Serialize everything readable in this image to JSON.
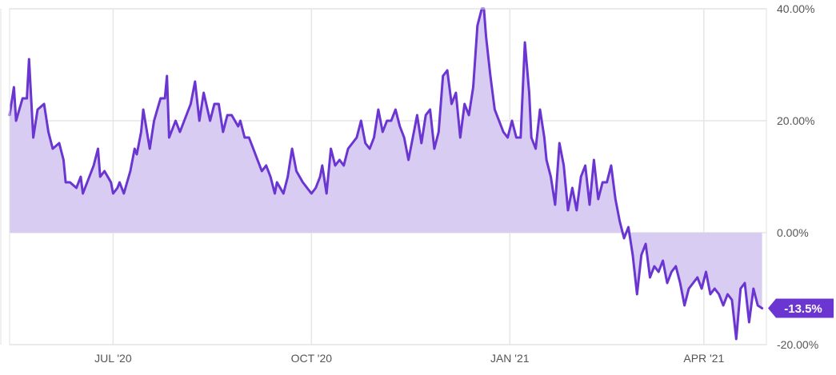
{
  "chart_data": {
    "type": "area",
    "title": "",
    "xlabel": "",
    "ylabel": "",
    "x_ticks": [
      "JUL '20",
      "OCT '20",
      "JAN '21",
      "APR '21"
    ],
    "x_tick_dates": [
      "2020-07-01",
      "2020-10-01",
      "2021-01-01",
      "2021-04-01"
    ],
    "xlim": [
      "2020-05-14",
      "2021-04-30"
    ],
    "y_ticks": [
      40,
      20,
      0,
      -20
    ],
    "y_tick_labels": [
      "40.00%",
      "20.00%",
      "0.00%",
      "-20.00%"
    ],
    "ylim": [
      -20,
      40
    ],
    "grid": true,
    "last_value_label": "-13.5%",
    "colors": {
      "line": "#6a35d0",
      "fill": "#d8ccf2",
      "callout": "#6a35d0",
      "grid": "#e6e6e6"
    },
    "series": [
      {
        "values": [
          [
            "2020-05-14",
            21
          ],
          [
            "2020-05-16",
            26
          ],
          [
            "2020-05-17",
            20
          ],
          [
            "2020-05-20",
            24
          ],
          [
            "2020-05-22",
            24
          ],
          [
            "2020-05-23",
            31
          ],
          [
            "2020-05-25",
            17
          ],
          [
            "2020-05-27",
            22
          ],
          [
            "2020-05-30",
            23
          ],
          [
            "2020-06-01",
            18
          ],
          [
            "2020-06-03",
            15
          ],
          [
            "2020-06-06",
            16
          ],
          [
            "2020-06-08",
            13
          ],
          [
            "2020-06-09",
            9
          ],
          [
            "2020-06-11",
            9
          ],
          [
            "2020-06-14",
            8
          ],
          [
            "2020-06-16",
            10
          ],
          [
            "2020-06-17",
            7
          ],
          [
            "2020-06-20",
            10
          ],
          [
            "2020-06-22",
            12
          ],
          [
            "2020-06-24",
            15
          ],
          [
            "2020-06-25",
            10
          ],
          [
            "2020-06-27",
            11
          ],
          [
            "2020-06-30",
            9
          ],
          [
            "2020-07-01",
            7
          ],
          [
            "2020-07-03",
            8
          ],
          [
            "2020-07-04",
            9
          ],
          [
            "2020-07-06",
            7
          ],
          [
            "2020-07-09",
            11
          ],
          [
            "2020-07-11",
            15
          ],
          [
            "2020-07-12",
            14
          ],
          [
            "2020-07-14",
            18
          ],
          [
            "2020-07-15",
            22
          ],
          [
            "2020-07-18",
            15
          ],
          [
            "2020-07-20",
            20
          ],
          [
            "2020-07-23",
            24
          ],
          [
            "2020-07-25",
            24
          ],
          [
            "2020-07-26",
            28
          ],
          [
            "2020-07-27",
            17
          ],
          [
            "2020-07-30",
            20
          ],
          [
            "2020-08-01",
            18
          ],
          [
            "2020-08-03",
            20
          ],
          [
            "2020-08-06",
            23
          ],
          [
            "2020-08-08",
            27
          ],
          [
            "2020-08-10",
            20
          ],
          [
            "2020-08-12",
            25
          ],
          [
            "2020-08-15",
            20
          ],
          [
            "2020-08-17",
            23
          ],
          [
            "2020-08-19",
            23
          ],
          [
            "2020-08-21",
            18
          ],
          [
            "2020-08-23",
            21
          ],
          [
            "2020-08-25",
            21
          ],
          [
            "2020-08-28",
            19
          ],
          [
            "2020-08-29",
            20
          ],
          [
            "2020-08-31",
            17
          ],
          [
            "2020-09-02",
            17
          ],
          [
            "2020-09-04",
            15
          ],
          [
            "2020-09-06",
            13
          ],
          [
            "2020-09-08",
            11
          ],
          [
            "2020-09-10",
            12
          ],
          [
            "2020-09-12",
            10
          ],
          [
            "2020-09-14",
            7
          ],
          [
            "2020-09-15",
            9
          ],
          [
            "2020-09-18",
            7
          ],
          [
            "2020-09-20",
            10
          ],
          [
            "2020-09-22",
            15
          ],
          [
            "2020-09-24",
            11
          ],
          [
            "2020-09-27",
            9
          ],
          [
            "2020-09-29",
            8
          ],
          [
            "2020-10-01",
            7
          ],
          [
            "2020-10-03",
            8
          ],
          [
            "2020-10-05",
            10
          ],
          [
            "2020-10-06",
            12
          ],
          [
            "2020-10-08",
            7
          ],
          [
            "2020-10-10",
            15
          ],
          [
            "2020-10-12",
            12
          ],
          [
            "2020-10-14",
            13
          ],
          [
            "2020-10-16",
            12
          ],
          [
            "2020-10-18",
            15
          ],
          [
            "2020-10-20",
            16
          ],
          [
            "2020-10-22",
            17
          ],
          [
            "2020-10-24",
            20
          ],
          [
            "2020-10-26",
            16
          ],
          [
            "2020-10-28",
            15
          ],
          [
            "2020-10-30",
            17
          ],
          [
            "2020-11-01",
            22
          ],
          [
            "2020-11-03",
            18
          ],
          [
            "2020-11-05",
            20
          ],
          [
            "2020-11-07",
            20
          ],
          [
            "2020-11-09",
            22
          ],
          [
            "2020-11-11",
            19
          ],
          [
            "2020-11-13",
            17
          ],
          [
            "2020-11-15",
            13
          ],
          [
            "2020-11-17",
            17
          ],
          [
            "2020-11-19",
            21
          ],
          [
            "2020-11-21",
            16
          ],
          [
            "2020-11-23",
            21
          ],
          [
            "2020-11-25",
            22
          ],
          [
            "2020-11-27",
            15
          ],
          [
            "2020-11-29",
            18
          ],
          [
            "2020-12-01",
            28
          ],
          [
            "2020-12-03",
            29
          ],
          [
            "2020-12-05",
            23
          ],
          [
            "2020-12-07",
            25
          ],
          [
            "2020-12-09",
            17
          ],
          [
            "2020-12-11",
            23
          ],
          [
            "2020-12-13",
            21
          ],
          [
            "2020-12-15",
            26
          ],
          [
            "2020-12-17",
            37
          ],
          [
            "2020-12-19",
            40
          ],
          [
            "2020-12-20",
            40
          ],
          [
            "2020-12-21",
            35
          ],
          [
            "2020-12-23",
            28
          ],
          [
            "2020-12-25",
            22
          ],
          [
            "2020-12-27",
            20
          ],
          [
            "2020-12-29",
            18
          ],
          [
            "2020-12-31",
            17
          ],
          [
            "2021-01-02",
            20
          ],
          [
            "2021-01-04",
            17
          ],
          [
            "2021-01-06",
            17
          ],
          [
            "2021-01-08",
            34
          ],
          [
            "2021-01-10",
            25
          ],
          [
            "2021-01-11",
            17
          ],
          [
            "2021-01-13",
            15
          ],
          [
            "2021-01-15",
            22
          ],
          [
            "2021-01-17",
            17
          ],
          [
            "2021-01-18",
            13
          ],
          [
            "2021-01-20",
            10
          ],
          [
            "2021-01-22",
            5
          ],
          [
            "2021-01-24",
            16
          ],
          [
            "2021-01-26",
            12
          ],
          [
            "2021-01-28",
            4
          ],
          [
            "2021-01-30",
            8
          ],
          [
            "2021-02-01",
            4
          ],
          [
            "2021-02-03",
            10
          ],
          [
            "2021-02-05",
            12
          ],
          [
            "2021-02-07",
            5
          ],
          [
            "2021-02-09",
            13
          ],
          [
            "2021-02-11",
            6
          ],
          [
            "2021-02-13",
            9
          ],
          [
            "2021-02-15",
            9
          ],
          [
            "2021-02-17",
            12
          ],
          [
            "2021-02-19",
            6
          ],
          [
            "2021-02-21",
            2
          ],
          [
            "2021-02-23",
            -1
          ],
          [
            "2021-02-25",
            1
          ],
          [
            "2021-02-27",
            -4
          ],
          [
            "2021-03-01",
            -11
          ],
          [
            "2021-03-03",
            -4
          ],
          [
            "2021-03-05",
            -2
          ],
          [
            "2021-03-07",
            -8
          ],
          [
            "2021-03-09",
            -6
          ],
          [
            "2021-03-11",
            -7
          ],
          [
            "2021-03-13",
            -5
          ],
          [
            "2021-03-15",
            -9
          ],
          [
            "2021-03-17",
            -7
          ],
          [
            "2021-03-19",
            -6
          ],
          [
            "2021-03-21",
            -9
          ],
          [
            "2021-03-23",
            -13
          ],
          [
            "2021-03-25",
            -10
          ],
          [
            "2021-03-27",
            -9
          ],
          [
            "2021-03-29",
            -8
          ],
          [
            "2021-03-31",
            -10
          ],
          [
            "2021-04-02",
            -7
          ],
          [
            "2021-04-04",
            -11
          ],
          [
            "2021-04-06",
            -10
          ],
          [
            "2021-04-08",
            -11
          ],
          [
            "2021-04-10",
            -13
          ],
          [
            "2021-04-12",
            -11
          ],
          [
            "2021-04-14",
            -12
          ],
          [
            "2021-04-16",
            -19
          ],
          [
            "2021-04-18",
            -10
          ],
          [
            "2021-04-20",
            -9
          ],
          [
            "2021-04-22",
            -16
          ],
          [
            "2021-04-24",
            -10
          ],
          [
            "2021-04-26",
            -13
          ],
          [
            "2021-04-28",
            -13.5
          ]
        ]
      }
    ]
  }
}
